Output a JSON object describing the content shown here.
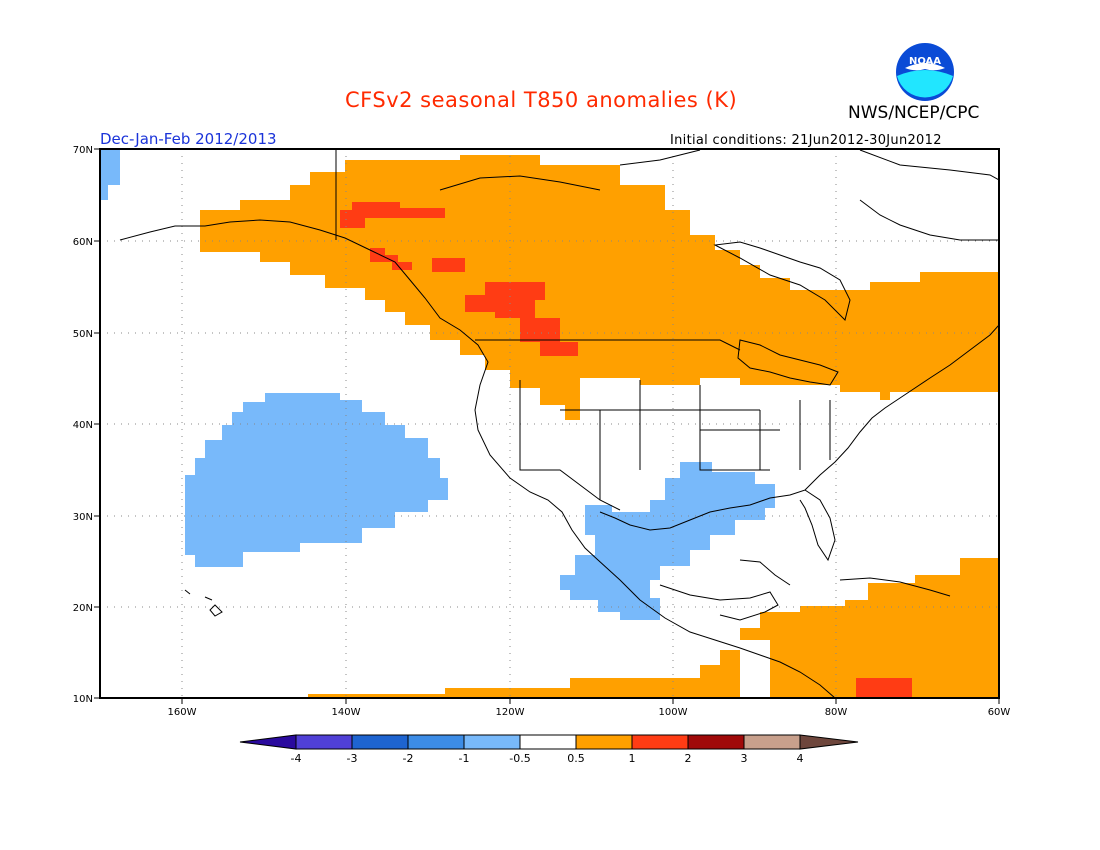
{
  "header": {
    "title": "CFSv2 seasonal T850 anomalies (K)",
    "agency": "NWS/NCEP/CPC",
    "season": "Dec-Jan-Feb 2012/2013",
    "initial_conditions": "Initial conditions: 21Jun2012-30Jun2012",
    "logo_text": "NOAA"
  },
  "map": {
    "lon_ticks": [
      "160W",
      "140W",
      "120W",
      "100W",
      "80W",
      "60W"
    ],
    "lat_ticks": [
      "70N",
      "60N",
      "50N",
      "40N",
      "30N",
      "20N",
      "10N"
    ],
    "colors": {
      "warm_0_5_1": "#ffa000",
      "warm_1_2": "#ff3c14",
      "cool_m1_m0_5": "#78b9fa"
    }
  },
  "colorbar": {
    "labels": [
      "-4",
      "-3",
      "-2",
      "-1",
      "-0.5",
      "0.5",
      "1",
      "2",
      "3",
      "4"
    ],
    "colors": [
      "#2a0a9e",
      "#5040d6",
      "#1e64d0",
      "#3c8ce6",
      "#78b9fa",
      "#ffffff",
      "#ffa000",
      "#ff3c14",
      "#a00a0a",
      "#c8a08c",
      "#6e463c"
    ]
  }
}
